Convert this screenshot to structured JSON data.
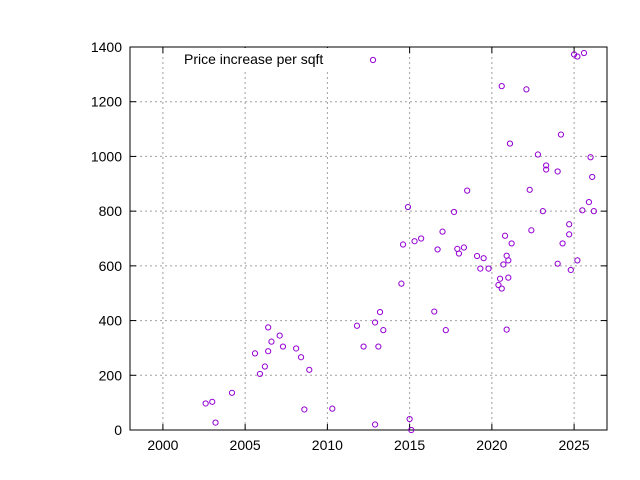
{
  "chart_data": {
    "type": "scatter",
    "title": "",
    "xlabel": "",
    "ylabel": "",
    "xlim": [
      1998,
      2027
    ],
    "ylim": [
      0,
      1400
    ],
    "xticks": [
      2000,
      2005,
      2010,
      2015,
      2020,
      2025
    ],
    "yticks": [
      0,
      200,
      400,
      600,
      800,
      1000,
      1200,
      1400
    ],
    "grid": true,
    "legend_position": "top",
    "series": [
      {
        "name": "Price increase per sqft",
        "color": "#9400d3",
        "marker": "open-circle",
        "points": [
          [
            2002.6,
            97
          ],
          [
            2003.0,
            103
          ],
          [
            2003.2,
            27
          ],
          [
            2004.2,
            136
          ],
          [
            2005.6,
            280
          ],
          [
            2005.9,
            205
          ],
          [
            2006.2,
            232
          ],
          [
            2006.4,
            375
          ],
          [
            2006.4,
            288
          ],
          [
            2006.6,
            323
          ],
          [
            2007.1,
            345
          ],
          [
            2007.3,
            305
          ],
          [
            2008.1,
            298
          ],
          [
            2008.4,
            266
          ],
          [
            2008.6,
            75
          ],
          [
            2008.9,
            220
          ],
          [
            2010.3,
            78
          ],
          [
            2011.8,
            381
          ],
          [
            2012.2,
            305
          ],
          [
            2012.9,
            393
          ],
          [
            2012.9,
            20
          ],
          [
            2013.1,
            305
          ],
          [
            2013.2,
            431
          ],
          [
            2013.4,
            365
          ],
          [
            2014.5,
            535
          ],
          [
            2014.6,
            678
          ],
          [
            2014.9,
            815
          ],
          [
            2015.0,
            40
          ],
          [
            2015.1,
            0
          ],
          [
            2015.3,
            690
          ],
          [
            2015.7,
            700
          ],
          [
            2016.5,
            433
          ],
          [
            2016.7,
            660
          ],
          [
            2017.0,
            725
          ],
          [
            2017.2,
            365
          ],
          [
            2017.7,
            797
          ],
          [
            2017.9,
            662
          ],
          [
            2018.0,
            645
          ],
          [
            2018.3,
            667
          ],
          [
            2018.5,
            875
          ],
          [
            2019.1,
            636
          ],
          [
            2019.3,
            590
          ],
          [
            2019.5,
            628
          ],
          [
            2019.8,
            590
          ],
          [
            2020.4,
            530
          ],
          [
            2020.5,
            553
          ],
          [
            2020.6,
            1257
          ],
          [
            2020.6,
            517
          ],
          [
            2020.7,
            605
          ],
          [
            2020.8,
            710
          ],
          [
            2020.9,
            637
          ],
          [
            2020.9,
            367
          ],
          [
            2021.0,
            620
          ],
          [
            2021.0,
            557
          ],
          [
            2021.1,
            1047
          ],
          [
            2021.2,
            682
          ],
          [
            2022.1,
            1245
          ],
          [
            2022.3,
            878
          ],
          [
            2022.4,
            730
          ],
          [
            2022.8,
            1007
          ],
          [
            2023.1,
            800
          ],
          [
            2023.3,
            967
          ],
          [
            2023.3,
            952
          ],
          [
            2024.0,
            608
          ],
          [
            2024.0,
            945
          ],
          [
            2024.2,
            1080
          ],
          [
            2024.3,
            682
          ],
          [
            2024.7,
            752
          ],
          [
            2024.7,
            715
          ],
          [
            2024.8,
            585
          ],
          [
            2025.0,
            1373
          ],
          [
            2025.2,
            1365
          ],
          [
            2025.2,
            620
          ],
          [
            2025.5,
            803
          ],
          [
            2025.6,
            1378
          ],
          [
            2025.9,
            833
          ],
          [
            2026.0,
            997
          ],
          [
            2026.1,
            925
          ],
          [
            2026.2,
            800
          ]
        ]
      }
    ],
    "legend": [
      {
        "label": "Price increase per sqft"
      }
    ]
  }
}
